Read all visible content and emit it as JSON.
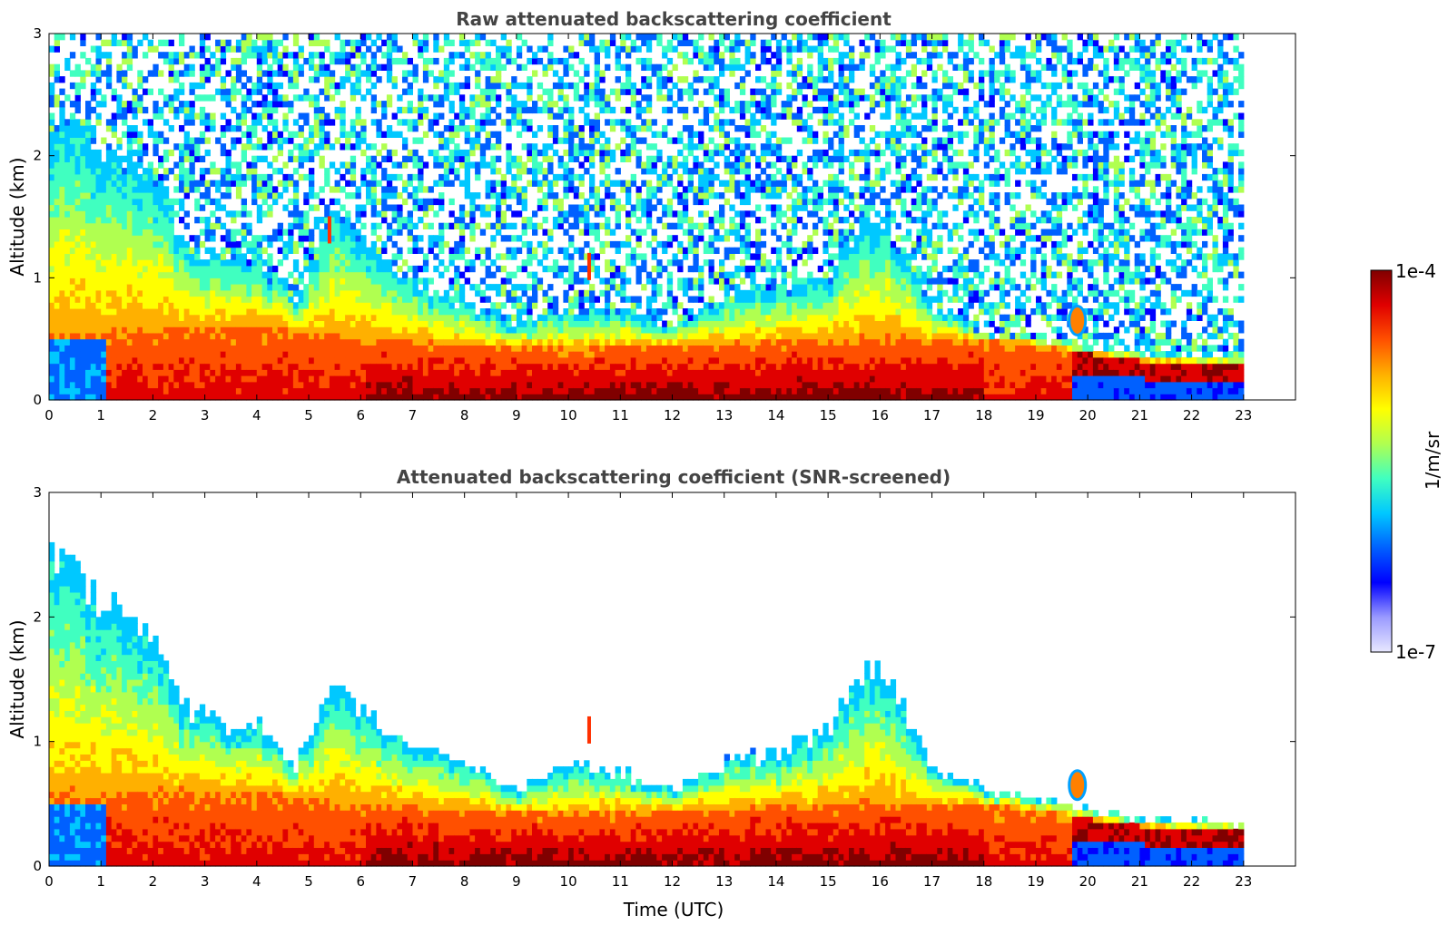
{
  "chart_data": [
    {
      "type": "heatmap",
      "title": "Raw attenuated backscattering coefficient",
      "xlabel": "",
      "ylabel": "Altitude (km)",
      "xlim": [
        0,
        24
      ],
      "ylim": [
        0,
        3
      ],
      "x_ticks": [
        "0",
        "1",
        "2",
        "3",
        "4",
        "5",
        "6",
        "7",
        "8",
        "9",
        "10",
        "11",
        "12",
        "13",
        "14",
        "15",
        "16",
        "17",
        "18",
        "19",
        "20",
        "21",
        "22",
        "23"
      ],
      "y_ticks": [
        "0",
        "1",
        "2",
        "3"
      ],
      "data_extent_hours": [
        0,
        23
      ],
      "noise_fill": true,
      "boundary_layer_top_km": [
        [
          0,
          2.3
        ],
        [
          1,
          2.05
        ],
        [
          2,
          1.8
        ],
        [
          2.7,
          1.2
        ],
        [
          3.5,
          1.15
        ],
        [
          4,
          1.15
        ],
        [
          4.7,
          0.8
        ],
        [
          5,
          1.1
        ],
        [
          5.4,
          1.55
        ],
        [
          6,
          1.3
        ],
        [
          7,
          0.95
        ],
        [
          8,
          0.8
        ],
        [
          9,
          0.6
        ],
        [
          10,
          0.75
        ],
        [
          11,
          0.7
        ],
        [
          12,
          0.6
        ],
        [
          13,
          0.85
        ],
        [
          14,
          0.9
        ],
        [
          15,
          1.0
        ],
        [
          15.5,
          1.4
        ],
        [
          16,
          1.5
        ],
        [
          17,
          0.75
        ],
        [
          18,
          0.55
        ],
        [
          19,
          0.5
        ],
        [
          20,
          0.45
        ],
        [
          21,
          0.38
        ],
        [
          22,
          0.36
        ],
        [
          23,
          0.35
        ]
      ],
      "aerosol_layer_km": [
        [
          0,
          0.55
        ],
        [
          2,
          0.6
        ],
        [
          4,
          0.6
        ],
        [
          6,
          0.5
        ],
        [
          8,
          0.45
        ],
        [
          10,
          0.42
        ],
        [
          12,
          0.45
        ],
        [
          14,
          0.48
        ],
        [
          16,
          0.5
        ],
        [
          18,
          0.5
        ],
        [
          19,
          0.45
        ],
        [
          20,
          0.38
        ],
        [
          21,
          0.32
        ],
        [
          22,
          0.3
        ],
        [
          23,
          0.3
        ]
      ],
      "features": [
        {
          "label": "",
          "x": 19.8,
          "y": 0.65,
          "kind": "cloud-blob"
        },
        {
          "label": "",
          "x": 10.4,
          "y": 1.1,
          "kind": "plume"
        },
        {
          "label": "",
          "x": 5.4,
          "y": 1.4,
          "kind": "plume"
        }
      ]
    },
    {
      "type": "heatmap",
      "title": "Attenuated backscattering coefficient (SNR-screened)",
      "xlabel": "Time (UTC)",
      "ylabel": "Altitude (km)",
      "xlim": [
        0,
        24
      ],
      "ylim": [
        0,
        3
      ],
      "x_ticks": [
        "0",
        "1",
        "2",
        "3",
        "4",
        "5",
        "6",
        "7",
        "8",
        "9",
        "10",
        "11",
        "12",
        "13",
        "14",
        "15",
        "16",
        "17",
        "18",
        "19",
        "20",
        "21",
        "22",
        "23"
      ],
      "y_ticks": [
        "0",
        "1",
        "2",
        "3"
      ],
      "data_extent_hours": [
        0,
        23
      ],
      "noise_fill": false,
      "boundary_layer_top_km": [
        [
          0,
          2.45
        ],
        [
          1,
          2.15
        ],
        [
          2,
          1.85
        ],
        [
          2.7,
          1.2
        ],
        [
          3.5,
          1.15
        ],
        [
          4,
          1.15
        ],
        [
          4.7,
          0.8
        ],
        [
          5,
          1.1
        ],
        [
          5.4,
          1.55
        ],
        [
          6,
          1.25
        ],
        [
          7,
          0.95
        ],
        [
          8,
          0.85
        ],
        [
          9,
          0.6
        ],
        [
          10,
          0.85
        ],
        [
          11,
          0.75
        ],
        [
          12,
          0.6
        ],
        [
          13,
          0.85
        ],
        [
          14,
          0.9
        ],
        [
          15,
          1.1
        ],
        [
          15.5,
          1.5
        ],
        [
          16,
          1.6
        ],
        [
          17,
          0.75
        ],
        [
          18,
          0.6
        ],
        [
          19,
          0.55
        ],
        [
          20,
          0.45
        ],
        [
          21,
          0.38
        ],
        [
          22,
          0.36
        ],
        [
          23,
          0.35
        ]
      ],
      "aerosol_layer_km": [
        [
          0,
          0.55
        ],
        [
          2,
          0.6
        ],
        [
          4,
          0.6
        ],
        [
          6,
          0.5
        ],
        [
          8,
          0.45
        ],
        [
          10,
          0.42
        ],
        [
          12,
          0.45
        ],
        [
          14,
          0.48
        ],
        [
          16,
          0.5
        ],
        [
          18,
          0.5
        ],
        [
          19,
          0.45
        ],
        [
          20,
          0.38
        ],
        [
          21,
          0.32
        ],
        [
          22,
          0.3
        ],
        [
          23,
          0.3
        ]
      ],
      "features": [
        {
          "label": "",
          "x": 19.8,
          "y": 0.65,
          "kind": "cloud-blob"
        },
        {
          "label": "",
          "x": 10.4,
          "y": 1.1,
          "kind": "plume"
        }
      ]
    }
  ],
  "colorbar": {
    "label": "1/m/sr",
    "max_label": "1e-4",
    "min_label": "1e-7",
    "colors": [
      "#e8e8ff",
      "#9a9aff",
      "#0000ff",
      "#0060ff",
      "#00c8ff",
      "#40ffc0",
      "#b0ff50",
      "#ffff00",
      "#ffb000",
      "#ff5000",
      "#e00000",
      "#800000"
    ]
  }
}
